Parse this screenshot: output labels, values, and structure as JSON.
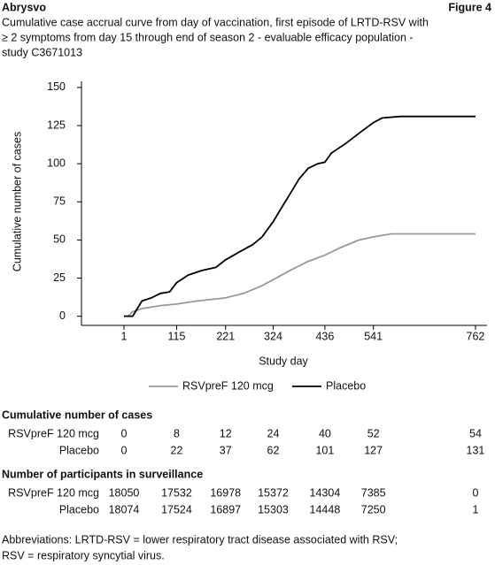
{
  "header": {
    "left": "Abrysvo",
    "right": "Figure 4"
  },
  "chart_data": {
    "type": "line",
    "title": [
      "Cumulative case accrual curve from day of vaccination, first episode of LRTD-RSV with",
      "≥ 2 symptoms from day 15 through end of season 2 - evaluable efficacy population -",
      "study C3671013"
    ],
    "x_label": "Study day",
    "y_label": "Cumulative number of cases",
    "xlim": [
      -91,
      787
    ],
    "ylim": [
      -6,
      154
    ],
    "xticks": [
      1,
      115,
      221,
      324,
      436,
      541,
      762
    ],
    "yticks": [
      0,
      25,
      50,
      75,
      100,
      125,
      150
    ],
    "series": [
      {
        "name": "RSVpreF 120 mcg",
        "color": "#999999",
        "x": [
          1,
          10,
          20,
          40,
          80,
          115,
          160,
          221,
          260,
          300,
          324,
          360,
          400,
          436,
          470,
          510,
          541,
          580,
          762
        ],
        "values": [
          0,
          0,
          3,
          5,
          7,
          8,
          10,
          12,
          15,
          20,
          24,
          30,
          36,
          40,
          45,
          50,
          52,
          54,
          54
        ]
      },
      {
        "name": "Placebo",
        "color": "#000000",
        "x": [
          1,
          20,
          30,
          40,
          60,
          80,
          100,
          115,
          140,
          170,
          200,
          221,
          250,
          280,
          300,
          324,
          340,
          360,
          380,
          400,
          420,
          436,
          450,
          480,
          510,
          541,
          560,
          600,
          762
        ],
        "values": [
          0,
          0,
          5,
          10,
          12,
          15,
          16,
          22,
          27,
          30,
          32,
          37,
          42,
          47,
          52,
          62,
          70,
          80,
          90,
          97,
          100,
          101,
          107,
          113,
          120,
          127,
          130,
          131,
          131
        ]
      }
    ]
  },
  "tables": [
    {
      "title": "Cumulative number of cases",
      "rows": [
        {
          "label": "RSVpreF 120 mcg",
          "values": [
            0,
            8,
            12,
            24,
            40,
            52,
            54
          ]
        },
        {
          "label": "Placebo",
          "values": [
            0,
            22,
            37,
            62,
            101,
            127,
            131
          ]
        }
      ]
    },
    {
      "title": "Number of participants in surveillance",
      "rows": [
        {
          "label": "RSVpreF 120 mcg",
          "values": [
            18050,
            17532,
            16978,
            15372,
            14304,
            7385,
            0
          ]
        },
        {
          "label": "Placebo",
          "values": [
            18074,
            17524,
            16897,
            15303,
            14448,
            7250,
            1
          ]
        }
      ]
    }
  ],
  "footnote": [
    "Abbreviations: LRTD-RSV = lower respiratory tract disease associated with RSV;",
    "RSV = respiratory syncytial virus."
  ]
}
